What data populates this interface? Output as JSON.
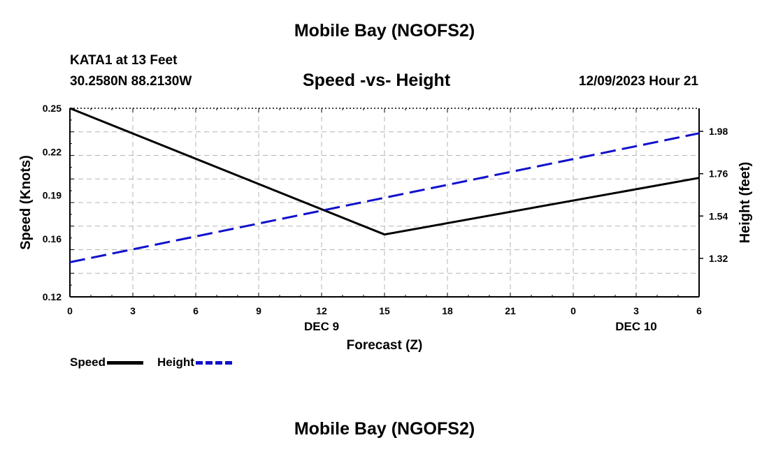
{
  "header": {
    "title": "Mobile Bay (NGOFS2)",
    "station": "KATA1 at 13 Feet",
    "coords": "30.2580N  88.2130W",
    "subtitle": "Speed -vs- Height",
    "datestamp": "12/09/2023 Hour 21"
  },
  "footer": {
    "title": "Mobile Bay (NGOFS2)"
  },
  "chart_data": {
    "type": "line",
    "xlabel": "Forecast (Z)",
    "ylabel": "Speed (Knots)",
    "y2label": "Height (feet)",
    "x_ticks": [
      "0",
      "3",
      "6",
      "9",
      "12",
      "15",
      "18",
      "21",
      "0",
      "3",
      "6"
    ],
    "x_range": [
      0,
      30
    ],
    "date_labels": [
      {
        "hour": 12,
        "label": "DEC 9"
      },
      {
        "hour": 27,
        "label": "DEC 10"
      }
    ],
    "y_range": [
      0.12,
      0.25
    ],
    "y_ticks": [
      "0.25",
      "0.22",
      "0.19",
      "0.16",
      "0.12"
    ],
    "y_tick_values": [
      0.25,
      0.22,
      0.19,
      0.16,
      0.12
    ],
    "y2_range": [
      1.12,
      2.1
    ],
    "y2_ticks": [
      "1.98",
      "1.76",
      "1.54",
      "1.32"
    ],
    "y2_tick_values": [
      1.98,
      1.76,
      1.54,
      1.32
    ],
    "grid": true,
    "series": [
      {
        "name": "Speed",
        "axis": "left",
        "color": "#000000",
        "style": "solid",
        "x": [
          0,
          15,
          30
        ],
        "values": [
          0.25,
          0.163,
          0.202
        ]
      },
      {
        "name": "Height",
        "axis": "right",
        "color": "#1010cc",
        "style": "dashed",
        "x": [
          0,
          30
        ],
        "values": [
          1.3,
          1.97
        ]
      }
    ],
    "legend": {
      "placement": "bottom-left",
      "entries": [
        "Speed",
        "Height"
      ]
    }
  }
}
